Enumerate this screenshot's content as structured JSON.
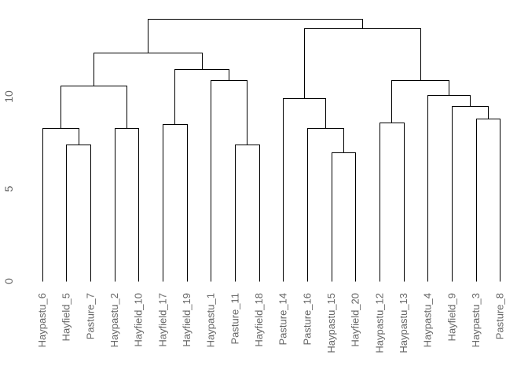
{
  "figure": {
    "background": "#ffffff",
    "line_color": "#000000",
    "leaf_label_color": "#666666",
    "axis_label_color": "#666666"
  },
  "chart_data": {
    "type": "dendrogram",
    "title": "",
    "xlabel": "",
    "ylabel": "",
    "grid": false,
    "legend": null,
    "ylim": [
      0,
      15
    ],
    "yticks": [
      0,
      5,
      10
    ],
    "leaves": [
      "Haypastu_6",
      "Hayfield_5",
      "Pasture_7",
      "Haypastu_2",
      "Hayfield_10",
      "Hayfield_17",
      "Hayfield_19",
      "Haypastu_1",
      "Pasture_11",
      "Hayfield_18",
      "Pasture_14",
      "Pasture_16",
      "Haypastu_15",
      "Hayfield_20",
      "Haypastu_12",
      "Haypastu_13",
      "Haypastu_4",
      "Hayfield_9",
      "Haypastu_3",
      "Pasture_8"
    ],
    "merges": [
      {
        "id": "m1",
        "children": [
          "Hayfield_5",
          "Pasture_7"
        ],
        "height": 7.4
      },
      {
        "id": "m2",
        "children": [
          "Pasture_11",
          "Hayfield_18"
        ],
        "height": 7.4
      },
      {
        "id": "m3",
        "children": [
          "Haypastu_15",
          "Hayfield_20"
        ],
        "height": 7.0
      },
      {
        "id": "m4",
        "children": [
          "Haypastu_6",
          "m1"
        ],
        "height": 8.3
      },
      {
        "id": "m5",
        "children": [
          "Haypastu_2",
          "Hayfield_10"
        ],
        "height": 8.3
      },
      {
        "id": "m6",
        "children": [
          "Hayfield_17",
          "Hayfield_19"
        ],
        "height": 8.5
      },
      {
        "id": "m7",
        "children": [
          "Haypastu_12",
          "Haypastu_13"
        ],
        "height": 8.6
      },
      {
        "id": "m8",
        "children": [
          "Haypastu_3",
          "Pasture_8"
        ],
        "height": 8.8
      },
      {
        "id": "m9",
        "children": [
          "Pasture_16",
          "m3"
        ],
        "height": 8.3
      },
      {
        "id": "m10",
        "children": [
          "Hayfield_9",
          "m8"
        ],
        "height": 9.5
      },
      {
        "id": "m11",
        "children": [
          "Pasture_14",
          "m9"
        ],
        "height": 9.9
      },
      {
        "id": "m12",
        "children": [
          "Haypastu_4",
          "m10"
        ],
        "height": 10.1
      },
      {
        "id": "m13",
        "children": [
          "m4",
          "m5"
        ],
        "height": 10.6
      },
      {
        "id": "m14",
        "children": [
          "Haypastu_1",
          "m2"
        ],
        "height": 10.9
      },
      {
        "id": "m15",
        "children": [
          "m7",
          "m12"
        ],
        "height": 10.9
      },
      {
        "id": "m16",
        "children": [
          "m6",
          "m14"
        ],
        "height": 11.5
      },
      {
        "id": "m17",
        "children": [
          "m13",
          "m16"
        ],
        "height": 12.4
      },
      {
        "id": "m18",
        "children": [
          "m11",
          "m15"
        ],
        "height": 13.7
      },
      {
        "id": "m19",
        "children": [
          "m17",
          "m18"
        ],
        "height": 14.2
      }
    ]
  }
}
